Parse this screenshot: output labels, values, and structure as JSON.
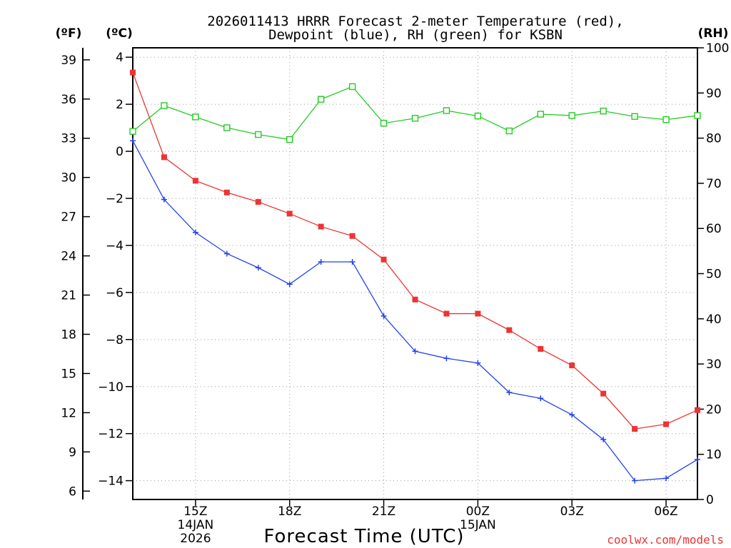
{
  "chart_data": {
    "type": "line",
    "title_line1": "2026011413 HRRR Forecast 2-meter Temperature (red),",
    "title_line2": "Dewpoint (blue), RH (green) for KSBN",
    "xlabel": "Forecast Time (UTC)",
    "credit": "coolwx.com/models",
    "units": {
      "fahrenheit": "(ºF)",
      "celsius": "(ºC)",
      "rh": "(RH)"
    },
    "x_hours": [
      13,
      14,
      15,
      16,
      17,
      18,
      19,
      20,
      21,
      22,
      23,
      24,
      25,
      26,
      27,
      28,
      29,
      30,
      31
    ],
    "xlim": [
      13,
      31
    ],
    "x_ticks": [
      {
        "hour": 15,
        "label": "15Z",
        "date1": "14JAN",
        "date2": "2026"
      },
      {
        "hour": 18,
        "label": "18Z",
        "date1": "",
        "date2": ""
      },
      {
        "hour": 21,
        "label": "21Z",
        "date1": "",
        "date2": ""
      },
      {
        "hour": 24,
        "label": "00Z",
        "date1": "15JAN",
        "date2": ""
      },
      {
        "hour": 27,
        "label": "03Z",
        "date1": "",
        "date2": ""
      },
      {
        "hour": 30,
        "label": "06Z",
        "date1": "",
        "date2": ""
      }
    ],
    "celsius_axis": {
      "range": [
        -14.8,
        4.4
      ],
      "ticks": [
        4,
        2,
        0,
        -2,
        -4,
        -6,
        -8,
        -10,
        -12,
        -14
      ],
      "tick_labels": [
        "4",
        "2",
        "0",
        "−2",
        "−4",
        "−6",
        "−8",
        "−10",
        "−12",
        "−14"
      ]
    },
    "fahrenheit_axis": {
      "ticks": [
        39,
        36,
        33,
        30,
        27,
        24,
        21,
        18,
        15,
        12,
        9,
        6
      ],
      "tick_labels": [
        "39",
        "36",
        "33",
        "30",
        "27",
        "24",
        "21",
        "18",
        "15",
        "12",
        "9",
        "6"
      ]
    },
    "rh_axis": {
      "range": [
        0,
        100
      ],
      "ticks": [
        100,
        90,
        80,
        70,
        60,
        50,
        40,
        30,
        20,
        10,
        0
      ],
      "tick_labels": [
        "100",
        "90",
        "80",
        "70",
        "60",
        "50",
        "40",
        "30",
        "20",
        "10",
        "0"
      ]
    },
    "series": [
      {
        "name": "Temperature",
        "axis": "celsius",
        "color": "#ee3333",
        "marker": "filled-square",
        "values": [
          3.35,
          -0.25,
          -1.25,
          -1.75,
          -2.15,
          -2.65,
          -3.2,
          -3.6,
          -4.6,
          -6.3,
          -6.9,
          -6.9,
          -7.6,
          -8.4,
          -9.1,
          -10.3,
          -11.8,
          -11.6,
          -11.0
        ]
      },
      {
        "name": "Dewpoint",
        "axis": "celsius",
        "color": "#2244ee",
        "marker": "plus",
        "values": [
          0.45,
          -2.05,
          -3.45,
          -4.35,
          -4.95,
          -5.65,
          -4.7,
          -4.7,
          -7.0,
          -8.5,
          -8.8,
          -9.0,
          -10.25,
          -10.5,
          -11.2,
          -12.25,
          -14.0,
          -13.9,
          -13.1
        ]
      },
      {
        "name": "RH",
        "axis": "rh",
        "color": "#22cc22",
        "marker": "open-square",
        "values": [
          81.5,
          87.2,
          84.7,
          82.3,
          80.8,
          79.7,
          88.6,
          91.4,
          83.3,
          84.4,
          86.1,
          84.9,
          81.6,
          85.3,
          85.0,
          86.0,
          84.8,
          84.1,
          85.0
        ]
      }
    ]
  }
}
